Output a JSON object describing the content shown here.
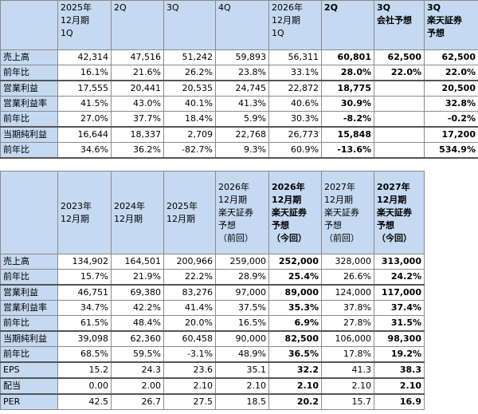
{
  "table1": {
    "header": [
      [],
      [
        "2025年",
        "12月期",
        "1Q"
      ],
      [
        "2Q"
      ],
      [
        "3Q"
      ],
      [
        "4Q"
      ],
      [
        "2026年",
        "12月期",
        "1Q"
      ],
      [
        "2Q"
      ],
      [
        "3Q",
        "会社予想"
      ],
      [
        "3Q",
        "楽天証券",
        "予想"
      ]
    ],
    "rows": [
      [
        "売上高",
        "42,314",
        "47,516",
        "51,242",
        "59,893",
        "56,311",
        "60,801",
        "62,500",
        "62,500"
      ],
      [
        "前年比",
        "16.1%",
        "21.6%",
        "26.2%",
        "23.8%",
        "33.1%",
        "28.0%",
        "22.0%",
        "22.0%"
      ],
      [
        "営業利益",
        "17,555",
        "20,441",
        "20,535",
        "24,745",
        "22,872",
        "18,775",
        null,
        "20,500"
      ],
      [
        "営業利益率",
        "41.5%",
        "43.0%",
        "40.1%",
        "41.3%",
        "40.6%",
        "30.9%",
        null,
        "32.8%"
      ],
      [
        "前年比",
        "27.0%",
        "37.7%",
        "18.4%",
        "5.9%",
        "30.3%",
        "-8.2%",
        null,
        "-0.2%"
      ],
      [
        "当期純利益",
        "16,644",
        "18,337",
        "2,709",
        "22,768",
        "26,773",
        "15,848",
        null,
        "17,200"
      ],
      [
        "前年比",
        "34.6%",
        "36.2%",
        "-82.7%",
        "9.3%",
        "60.9%",
        "-13.6%",
        null,
        "534.9%"
      ]
    ]
  },
  "table2": {
    "header": [
      [],
      [
        "2023年",
        "12月期"
      ],
      [
        "2024年",
        "12月期"
      ],
      [
        "2025年",
        "12月期"
      ],
      [
        "2026年",
        "12月期",
        "楽天証券",
        "予想",
        "（前回）"
      ],
      [
        "2026年",
        "12月期",
        "楽天証券",
        "予想",
        "（今回）"
      ],
      [
        "2027年",
        "12月期",
        "楽天証券",
        "予想",
        "（前回）"
      ],
      [
        "2027年",
        "12月期",
        "楽天証券",
        "予想",
        "（今回）"
      ]
    ],
    "rows": [
      [
        "売上高",
        "134,902",
        "164,501",
        "200,966",
        "259,000",
        "252,000",
        "328,000",
        "313,000"
      ],
      [
        "前年比",
        "15.7%",
        "21.9%",
        "22.2%",
        "28.9%",
        "25.4%",
        "26.6%",
        "24.2%"
      ],
      [
        "営業利益",
        "46,751",
        "69,380",
        "83,276",
        "97,000",
        "89,000",
        "124,000",
        "117,000"
      ],
      [
        "営業利益率",
        "34.7%",
        "42.2%",
        "41.4%",
        "37.5%",
        "35.3%",
        "37.8%",
        "37.4%"
      ],
      [
        "前年比",
        "61.5%",
        "48.4%",
        "20.0%",
        "16.5%",
        "6.9%",
        "27.8%",
        "31.5%"
      ],
      [
        "当期純利益",
        "39,098",
        "62,360",
        "60,458",
        "90,000",
        "82,500",
        "106,000",
        "98,300"
      ],
      [
        "前年比",
        "68.5%",
        "59.5%",
        "-3.1%",
        "48.9%",
        "36.5%",
        "17.8%",
        "19.2%"
      ],
      [
        "EPS",
        "15.2",
        "24.3",
        "23.6",
        "35.1",
        "32.2",
        "41.3",
        "38.3"
      ],
      [
        "配当",
        "0.00",
        "2.00",
        "2.10",
        "2.10",
        "2.10",
        "2.10",
        "2.10"
      ],
      [
        "PER",
        "42.5",
        "26.7",
        "27.5",
        "18.5",
        "20.2",
        "15.7",
        "16.9"
      ]
    ]
  }
}
